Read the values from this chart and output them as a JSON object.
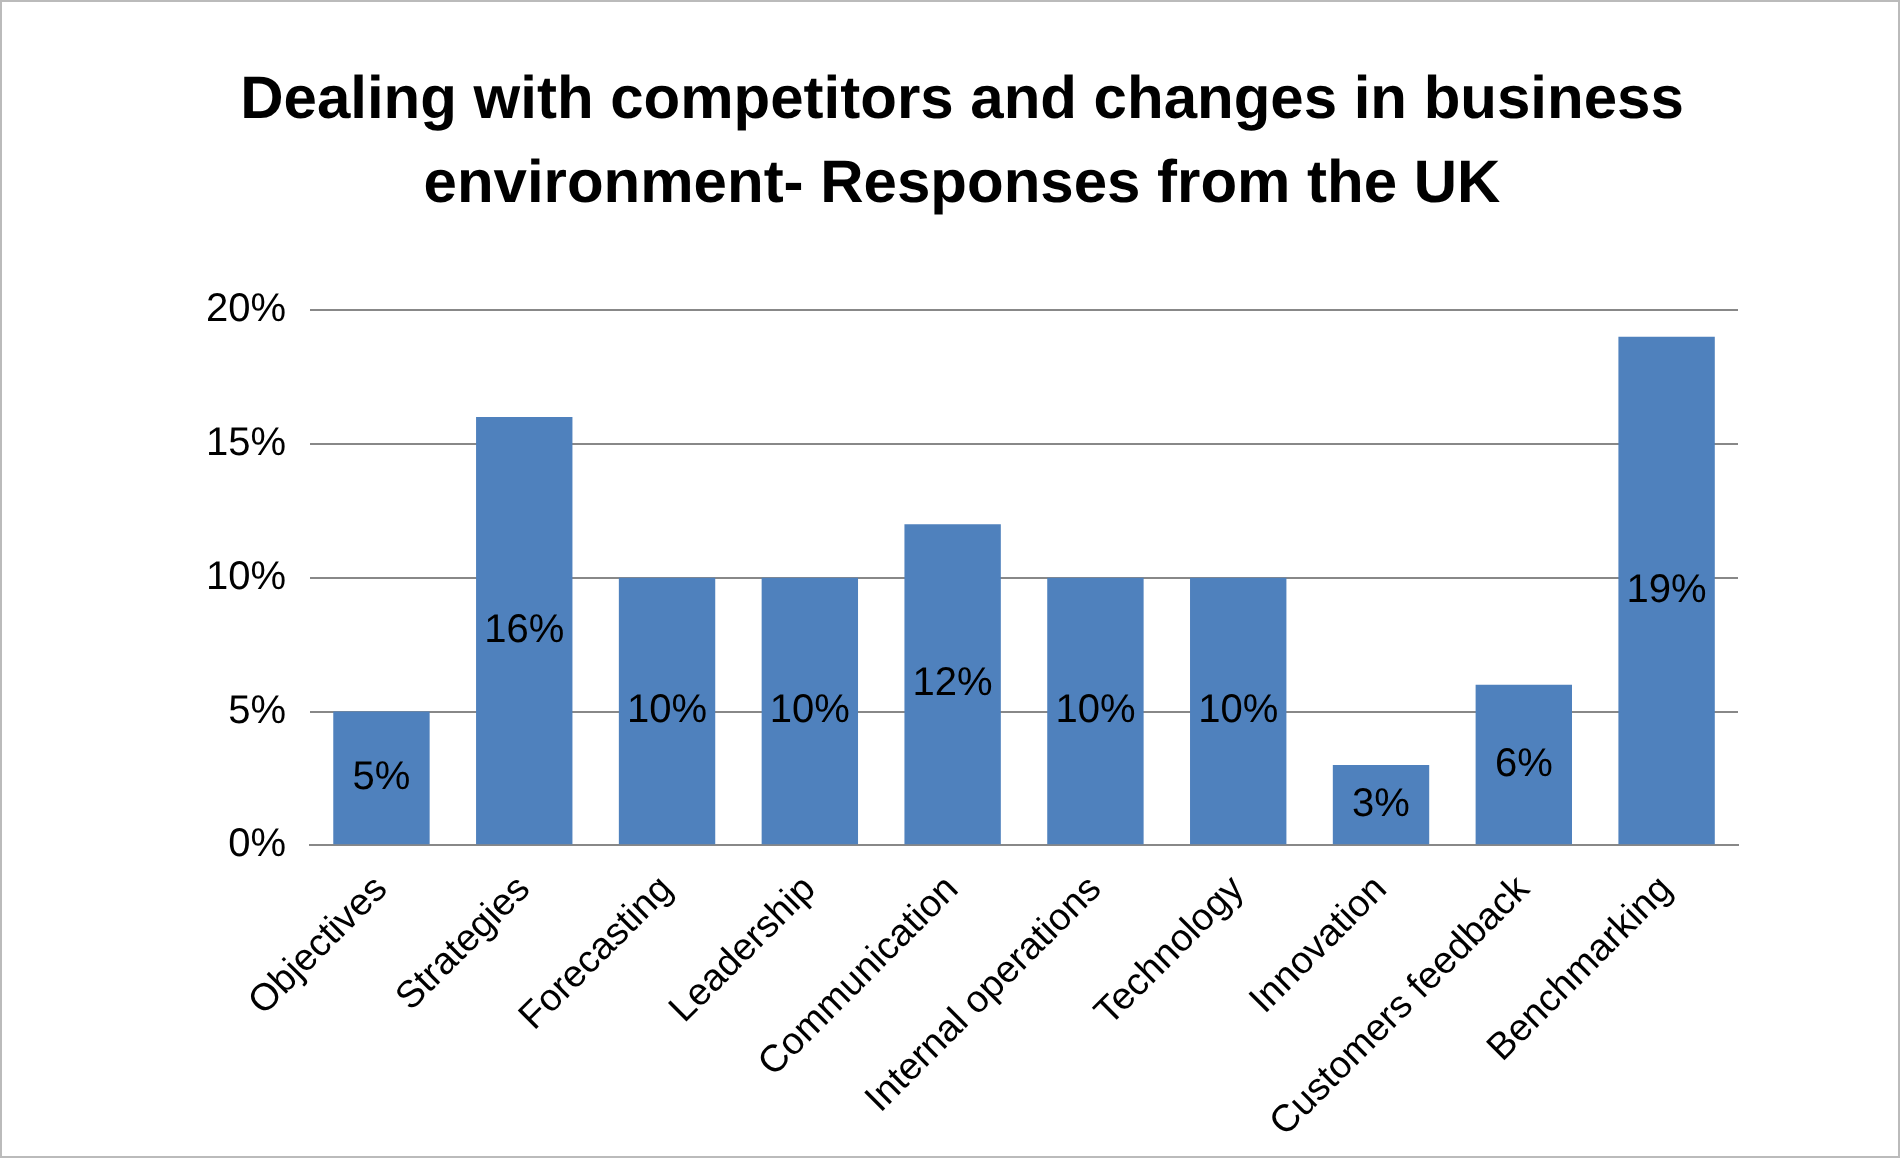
{
  "chart_data": {
    "type": "bar",
    "title": "Dealing with competitors and changes in business environment- Responses from the UK",
    "categories": [
      "Objectives",
      "Strategies",
      "Forecasting",
      "Leadership",
      "Communication",
      "Internal operations",
      "Technology",
      "Innovation",
      "Customers feedback",
      "Benchmarking"
    ],
    "values": [
      5,
      16,
      10,
      10,
      12,
      10,
      10,
      3,
      6,
      19
    ],
    "value_labels": [
      "5%",
      "16%",
      "10%",
      "10%",
      "12%",
      "10%",
      "10%",
      "3%",
      "6%",
      "19%"
    ],
    "color": "#4f81bd",
    "ylim": [
      0,
      20
    ],
    "yticks": [
      {
        "value": 0,
        "label": "0%"
      },
      {
        "value": 5,
        "label": "5%"
      },
      {
        "value": 10,
        "label": "10%"
      },
      {
        "value": 15,
        "label": "15%"
      },
      {
        "value": 20,
        "label": "20%"
      }
    ],
    "grid": "y",
    "legend": false
  }
}
